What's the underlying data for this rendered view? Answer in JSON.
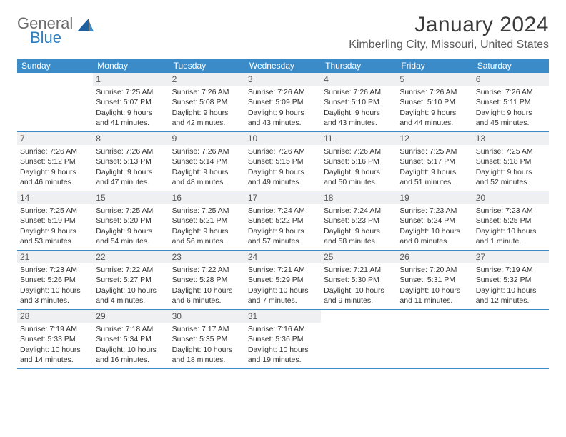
{
  "logo": {
    "word1": "General",
    "word2": "Blue"
  },
  "title": "January 2024",
  "location": "Kimberling City, Missouri, United States",
  "weekdays": [
    "Sunday",
    "Monday",
    "Tuesday",
    "Wednesday",
    "Thursday",
    "Friday",
    "Saturday"
  ],
  "colors": {
    "header_bg": "#3b8bc9",
    "daynum_bg": "#eef0f2",
    "rule": "#3b8bc9",
    "logo_blue": "#2f7ec2",
    "logo_gray": "#6b6b6b"
  },
  "weeks": [
    [
      {
        "num": "",
        "lines": []
      },
      {
        "num": "1",
        "lines": [
          "Sunrise: 7:25 AM",
          "Sunset: 5:07 PM",
          "Daylight: 9 hours and 41 minutes."
        ]
      },
      {
        "num": "2",
        "lines": [
          "Sunrise: 7:26 AM",
          "Sunset: 5:08 PM",
          "Daylight: 9 hours and 42 minutes."
        ]
      },
      {
        "num": "3",
        "lines": [
          "Sunrise: 7:26 AM",
          "Sunset: 5:09 PM",
          "Daylight: 9 hours and 43 minutes."
        ]
      },
      {
        "num": "4",
        "lines": [
          "Sunrise: 7:26 AM",
          "Sunset: 5:10 PM",
          "Daylight: 9 hours and 43 minutes."
        ]
      },
      {
        "num": "5",
        "lines": [
          "Sunrise: 7:26 AM",
          "Sunset: 5:10 PM",
          "Daylight: 9 hours and 44 minutes."
        ]
      },
      {
        "num": "6",
        "lines": [
          "Sunrise: 7:26 AM",
          "Sunset: 5:11 PM",
          "Daylight: 9 hours and 45 minutes."
        ]
      }
    ],
    [
      {
        "num": "7",
        "lines": [
          "Sunrise: 7:26 AM",
          "Sunset: 5:12 PM",
          "Daylight: 9 hours and 46 minutes."
        ]
      },
      {
        "num": "8",
        "lines": [
          "Sunrise: 7:26 AM",
          "Sunset: 5:13 PM",
          "Daylight: 9 hours and 47 minutes."
        ]
      },
      {
        "num": "9",
        "lines": [
          "Sunrise: 7:26 AM",
          "Sunset: 5:14 PM",
          "Daylight: 9 hours and 48 minutes."
        ]
      },
      {
        "num": "10",
        "lines": [
          "Sunrise: 7:26 AM",
          "Sunset: 5:15 PM",
          "Daylight: 9 hours and 49 minutes."
        ]
      },
      {
        "num": "11",
        "lines": [
          "Sunrise: 7:26 AM",
          "Sunset: 5:16 PM",
          "Daylight: 9 hours and 50 minutes."
        ]
      },
      {
        "num": "12",
        "lines": [
          "Sunrise: 7:25 AM",
          "Sunset: 5:17 PM",
          "Daylight: 9 hours and 51 minutes."
        ]
      },
      {
        "num": "13",
        "lines": [
          "Sunrise: 7:25 AM",
          "Sunset: 5:18 PM",
          "Daylight: 9 hours and 52 minutes."
        ]
      }
    ],
    [
      {
        "num": "14",
        "lines": [
          "Sunrise: 7:25 AM",
          "Sunset: 5:19 PM",
          "Daylight: 9 hours and 53 minutes."
        ]
      },
      {
        "num": "15",
        "lines": [
          "Sunrise: 7:25 AM",
          "Sunset: 5:20 PM",
          "Daylight: 9 hours and 54 minutes."
        ]
      },
      {
        "num": "16",
        "lines": [
          "Sunrise: 7:25 AM",
          "Sunset: 5:21 PM",
          "Daylight: 9 hours and 56 minutes."
        ]
      },
      {
        "num": "17",
        "lines": [
          "Sunrise: 7:24 AM",
          "Sunset: 5:22 PM",
          "Daylight: 9 hours and 57 minutes."
        ]
      },
      {
        "num": "18",
        "lines": [
          "Sunrise: 7:24 AM",
          "Sunset: 5:23 PM",
          "Daylight: 9 hours and 58 minutes."
        ]
      },
      {
        "num": "19",
        "lines": [
          "Sunrise: 7:23 AM",
          "Sunset: 5:24 PM",
          "Daylight: 10 hours and 0 minutes."
        ]
      },
      {
        "num": "20",
        "lines": [
          "Sunrise: 7:23 AM",
          "Sunset: 5:25 PM",
          "Daylight: 10 hours and 1 minute."
        ]
      }
    ],
    [
      {
        "num": "21",
        "lines": [
          "Sunrise: 7:23 AM",
          "Sunset: 5:26 PM",
          "Daylight: 10 hours and 3 minutes."
        ]
      },
      {
        "num": "22",
        "lines": [
          "Sunrise: 7:22 AM",
          "Sunset: 5:27 PM",
          "Daylight: 10 hours and 4 minutes."
        ]
      },
      {
        "num": "23",
        "lines": [
          "Sunrise: 7:22 AM",
          "Sunset: 5:28 PM",
          "Daylight: 10 hours and 6 minutes."
        ]
      },
      {
        "num": "24",
        "lines": [
          "Sunrise: 7:21 AM",
          "Sunset: 5:29 PM",
          "Daylight: 10 hours and 7 minutes."
        ]
      },
      {
        "num": "25",
        "lines": [
          "Sunrise: 7:21 AM",
          "Sunset: 5:30 PM",
          "Daylight: 10 hours and 9 minutes."
        ]
      },
      {
        "num": "26",
        "lines": [
          "Sunrise: 7:20 AM",
          "Sunset: 5:31 PM",
          "Daylight: 10 hours and 11 minutes."
        ]
      },
      {
        "num": "27",
        "lines": [
          "Sunrise: 7:19 AM",
          "Sunset: 5:32 PM",
          "Daylight: 10 hours and 12 minutes."
        ]
      }
    ],
    [
      {
        "num": "28",
        "lines": [
          "Sunrise: 7:19 AM",
          "Sunset: 5:33 PM",
          "Daylight: 10 hours and 14 minutes."
        ]
      },
      {
        "num": "29",
        "lines": [
          "Sunrise: 7:18 AM",
          "Sunset: 5:34 PM",
          "Daylight: 10 hours and 16 minutes."
        ]
      },
      {
        "num": "30",
        "lines": [
          "Sunrise: 7:17 AM",
          "Sunset: 5:35 PM",
          "Daylight: 10 hours and 18 minutes."
        ]
      },
      {
        "num": "31",
        "lines": [
          "Sunrise: 7:16 AM",
          "Sunset: 5:36 PM",
          "Daylight: 10 hours and 19 minutes."
        ]
      },
      {
        "num": "",
        "lines": []
      },
      {
        "num": "",
        "lines": []
      },
      {
        "num": "",
        "lines": []
      }
    ]
  ]
}
